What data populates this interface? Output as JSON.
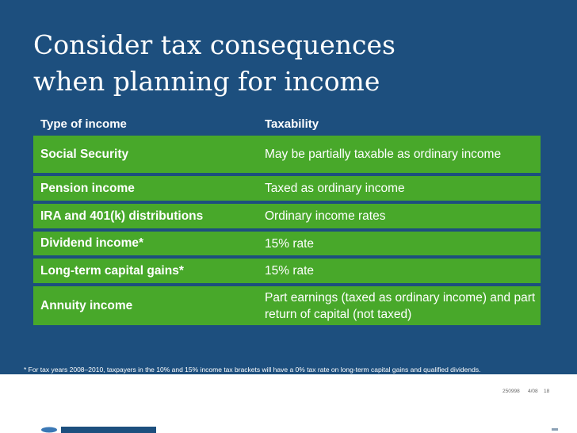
{
  "title": {
    "line1": "Consider tax consequences",
    "line2": "when planning for income"
  },
  "table": {
    "headers": {
      "type": "Type of income",
      "taxability": "Taxability"
    },
    "rows": [
      {
        "type": "Social Security",
        "taxability": "May be partially taxable as ordinary income"
      },
      {
        "type": "Pension income",
        "taxability": "Taxed as ordinary income"
      },
      {
        "type": "IRA and 401(k) distributions",
        "taxability": "Ordinary income rates"
      },
      {
        "type": "Dividend income*",
        "taxability": "15% rate"
      },
      {
        "type": "Long-term capital gains*",
        "taxability": "15% rate"
      },
      {
        "type": "Annuity income",
        "taxability": "Part earnings (taxed as ordinary income) and part return of capital (not taxed)"
      }
    ]
  },
  "footnote": "*  For tax years 2008–2010, taxpayers in the 10% and 15% income tax brackets will have a 0% tax rate on long-term capital gains and qualified dividends.",
  "footer": {
    "code": "250998",
    "date": "4/08",
    "page": "18"
  },
  "colors": {
    "background": "#1d4f7e",
    "row": "#48a82a"
  }
}
